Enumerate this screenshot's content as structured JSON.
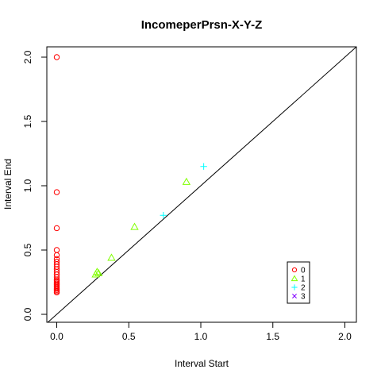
{
  "chart_data": {
    "type": "scatter",
    "title": "IncomeperPrsn-X-Y-Z",
    "xlabel": "Interval Start",
    "ylabel": "Interval End",
    "xlim": [
      0,
      2.1
    ],
    "ylim": [
      0,
      2.1
    ],
    "x_ticks": [
      "0.0",
      "0.5",
      "1.0",
      "1.5",
      "2.0"
    ],
    "y_ticks": [
      "0.0",
      "0.5",
      "1.0",
      "1.5",
      "2.0"
    ],
    "diagonal": true,
    "legend_position": "bottom-right",
    "series": [
      {
        "name": "0",
        "marker": "circle",
        "color": "#ff0000",
        "points": [
          [
            0,
            2.0
          ],
          [
            0,
            0.95
          ],
          [
            0,
            0.67
          ],
          [
            0,
            0.5
          ],
          [
            0,
            0.46
          ],
          [
            0,
            0.43
          ],
          [
            0,
            0.41
          ],
          [
            0,
            0.39
          ],
          [
            0,
            0.37
          ],
          [
            0,
            0.35
          ],
          [
            0,
            0.33
          ],
          [
            0,
            0.31
          ],
          [
            0,
            0.29
          ],
          [
            0,
            0.27
          ],
          [
            0,
            0.26
          ],
          [
            0,
            0.25
          ],
          [
            0,
            0.24
          ],
          [
            0,
            0.23
          ],
          [
            0,
            0.22
          ],
          [
            0,
            0.21
          ],
          [
            0,
            0.2
          ],
          [
            0,
            0.19
          ],
          [
            0,
            0.18
          ],
          [
            0,
            0.17
          ]
        ]
      },
      {
        "name": "1",
        "marker": "triangle",
        "color": "#80ff00",
        "points": [
          [
            0.27,
            0.31
          ],
          [
            0.28,
            0.33
          ],
          [
            0.29,
            0.32
          ],
          [
            0.38,
            0.44
          ],
          [
            0.54,
            0.68
          ],
          [
            0.9,
            1.03
          ]
        ]
      },
      {
        "name": "2",
        "marker": "plus",
        "color": "#00ffff",
        "points": [
          [
            0.74,
            0.77
          ],
          [
            1.02,
            1.15
          ]
        ]
      },
      {
        "name": "3",
        "marker": "cross",
        "color": "#8000ff",
        "points": []
      }
    ]
  }
}
